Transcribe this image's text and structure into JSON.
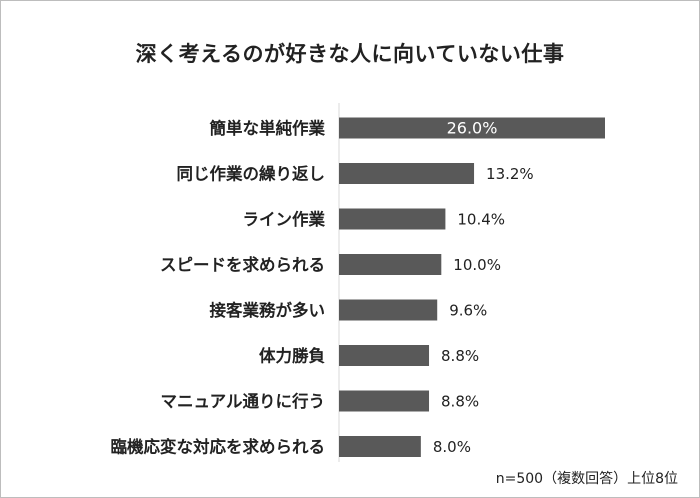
{
  "chart_data": {
    "type": "bar",
    "orientation": "horizontal",
    "title": "深く考えるのが好きな人に向いていない仕事",
    "categories": [
      "簡単な単純作業",
      "同じ作業の繰り返し",
      "ライン作業",
      "スピードを求められる",
      "接客業務が多い",
      "体力勝負",
      "マニュアル通りに行う",
      "臨機応変な対応を求められる"
    ],
    "values": [
      26.0,
      13.2,
      10.4,
      10.0,
      9.6,
      8.8,
      8.8,
      8.0
    ],
    "value_labels": [
      "26.0%",
      "13.2%",
      "10.4%",
      "10.0%",
      "9.6%",
      "8.8%",
      "8.8%",
      "8.0%"
    ],
    "xlim": [
      0,
      26
    ],
    "grid": false,
    "bar_color": "#595959",
    "note": "n=500（複数回答）上位8位"
  }
}
